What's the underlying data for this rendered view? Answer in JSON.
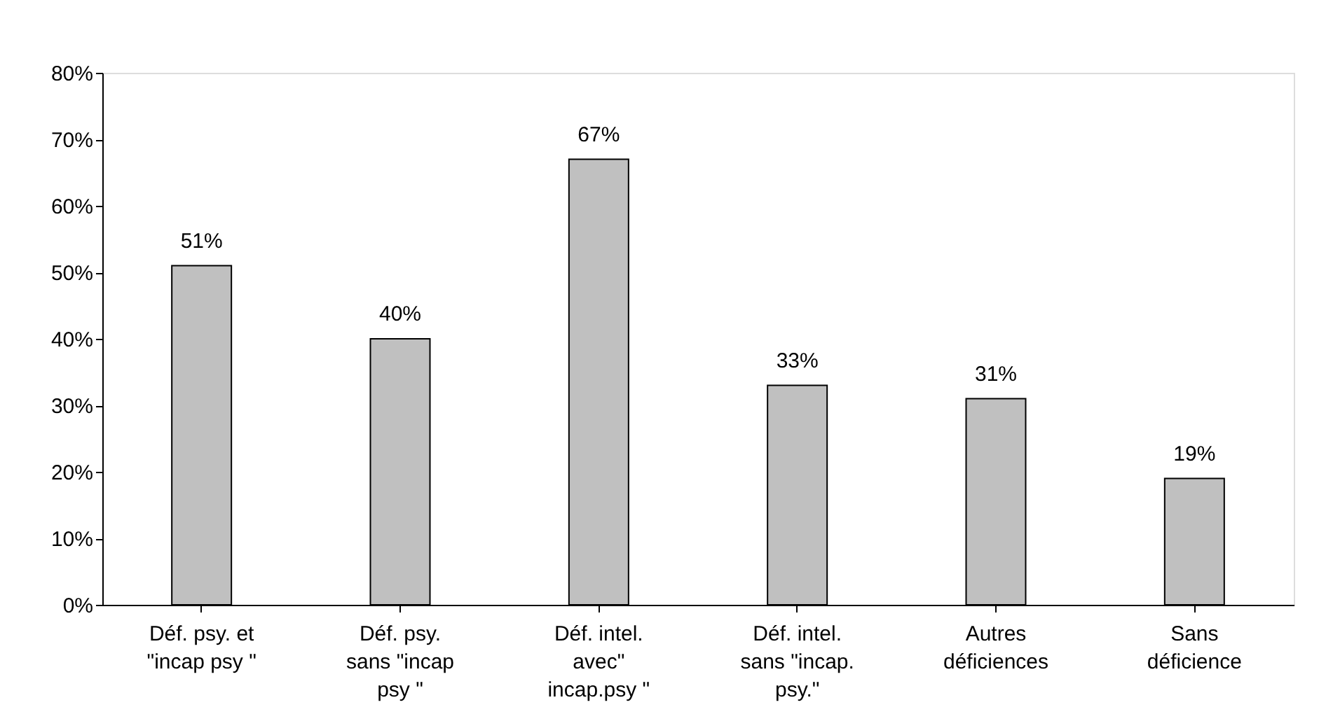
{
  "chart_data": {
    "type": "bar",
    "categories": [
      "Déf. psy. et\n\"incap psy \"",
      "Déf. psy.\nsans \"incap\npsy \"",
      "Déf. intel.\navec\"\nincap.psy  \"",
      "Déf. intel.\nsans \"incap.\npsy.\"",
      "Autres\ndéficiences",
      "Sans\ndéficience"
    ],
    "values": [
      51,
      40,
      67,
      33,
      31,
      19
    ],
    "value_labels": [
      "51%",
      "40%",
      "67%",
      "33%",
      "31%",
      "19%"
    ],
    "color": "#c0c0c0",
    "ylim": [
      0,
      80
    ],
    "yticks": [
      {
        "value": 0,
        "label": "0%"
      },
      {
        "value": 10,
        "label": "10%"
      },
      {
        "value": 20,
        "label": "20%"
      },
      {
        "value": 30,
        "label": "30%"
      },
      {
        "value": 40,
        "label": "40%"
      },
      {
        "value": 50,
        "label": "50%"
      },
      {
        "value": 60,
        "label": "60%"
      },
      {
        "value": 70,
        "label": "70%"
      },
      {
        "value": 80,
        "label": "80%"
      }
    ],
    "grid": false
  }
}
